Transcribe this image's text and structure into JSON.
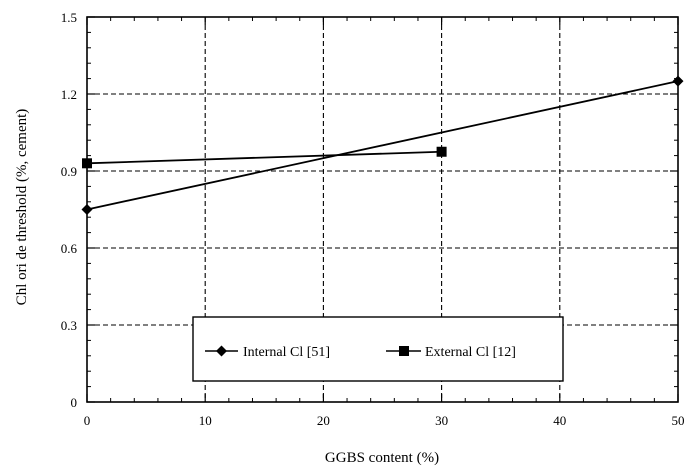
{
  "chart_data": {
    "type": "line",
    "title": "",
    "xlabel": "GGBS content (%)",
    "ylabel": "Chl ori de threshold (%, cement)",
    "xlim": [
      0,
      50
    ],
    "ylim": [
      0,
      1.5
    ],
    "x_ticks": [
      "0",
      "10",
      "20",
      "30",
      "40",
      "50"
    ],
    "y_ticks": [
      "0",
      "0.3",
      "0.6",
      "0.9",
      "1.2",
      "1.5"
    ],
    "grid": true,
    "grid_style": "dashed",
    "legend_position": "bottom-center",
    "series": [
      {
        "name": "Internal Cl [51]",
        "marker": "diamond",
        "x": [
          0,
          50
        ],
        "y": [
          0.75,
          1.25
        ]
      },
      {
        "name": "External Cl [12]",
        "marker": "square",
        "x": [
          0,
          30
        ],
        "y": [
          0.93,
          0.975
        ]
      }
    ]
  }
}
